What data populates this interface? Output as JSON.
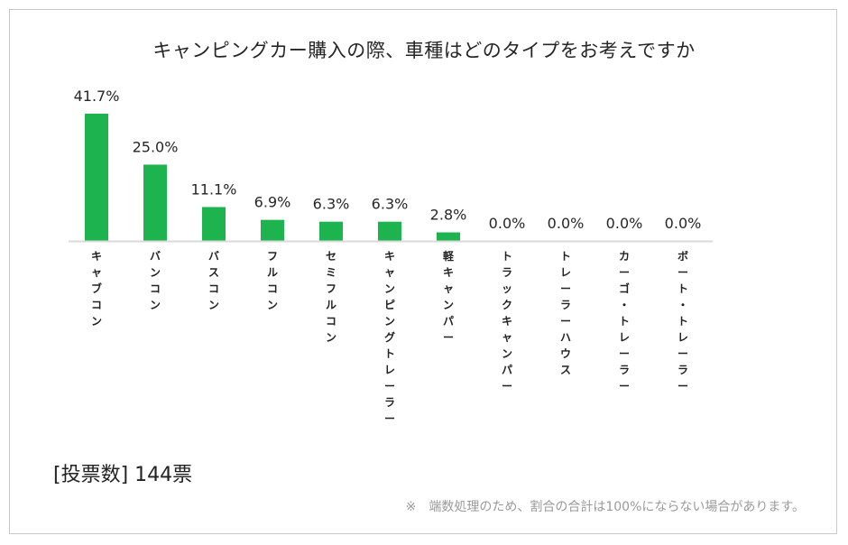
{
  "chart_data": {
    "type": "bar",
    "title": "キャンピングカー購入の際、車種はどのタイプをお考えですか",
    "categories": [
      "キャブコン",
      "バンコン",
      "バスコン",
      "フルコン",
      "セミフルコン",
      "キャンピングトレーラー",
      "軽キャンパー",
      "トラックキャンパー",
      "トレーラーハウス",
      "カーゴ・トレーラー",
      "ボート・トレーラー"
    ],
    "values": [
      41.7,
      25.0,
      11.1,
      6.9,
      6.3,
      6.3,
      2.8,
      0.0,
      0.0,
      0.0,
      0.0
    ],
    "value_labels": [
      "41.7%",
      "25.0%",
      "11.1%",
      "6.9%",
      "6.3%",
      "6.3%",
      "2.8%",
      "0.0%",
      "0.0%",
      "0.0%",
      "0.0%"
    ],
    "xlabel": "",
    "ylabel": "",
    "ylim": [
      0,
      41.7
    ],
    "grid": false,
    "bar_color": "#1db34f",
    "axis_color": "#d9d9d9"
  },
  "votes_label": "[投票数] 144票",
  "footnote": "※　端数処理のため、割合の合計は100%にならない場合があります。"
}
